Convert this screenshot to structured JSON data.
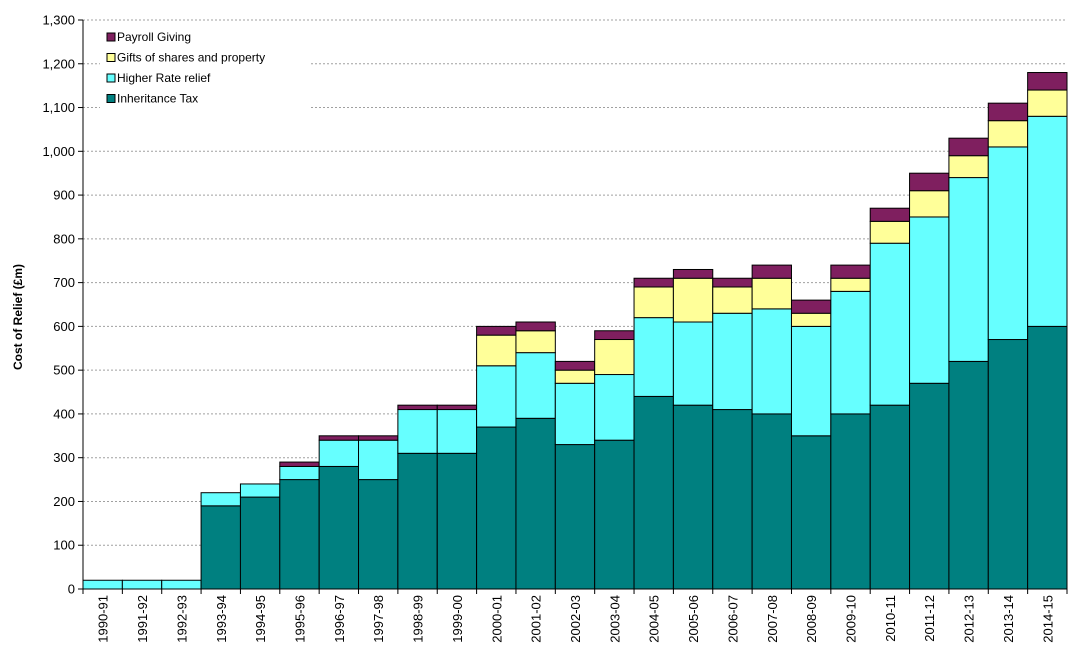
{
  "chart_data": {
    "type": "bar",
    "stacked": true,
    "title": "",
    "xlabel": "",
    "ylabel": "Cost of Relief (£m)",
    "ylim": [
      0,
      1300
    ],
    "ytick_step": 100,
    "grid": "horizontal dashed",
    "legend_placement": "top-left",
    "categories": [
      "1990-91",
      "1991-92",
      "1992-93",
      "1993-94",
      "1994-95",
      "1995-96",
      "1996-97",
      "1997-98",
      "1998-99",
      "1999-00",
      "2000-01",
      "2001-02",
      "2002-03",
      "2003-04",
      "2004-05",
      "2005-06",
      "2006-07",
      "2007-08",
      "2008-09",
      "2009-10",
      "2010-11",
      "2011-12",
      "2012-13",
      "2013-14",
      "2014-15"
    ],
    "series": [
      {
        "name": "Inheritance Tax",
        "color": "#008080",
        "values": [
          0,
          0,
          0,
          190,
          210,
          250,
          280,
          250,
          310,
          310,
          370,
          390,
          330,
          340,
          440,
          420,
          410,
          400,
          350,
          400,
          420,
          470,
          520,
          570,
          600
        ]
      },
      {
        "name": "Higher Rate relief",
        "color": "#66FFFF",
        "values": [
          20,
          20,
          20,
          30,
          30,
          30,
          60,
          90,
          100,
          100,
          140,
          150,
          140,
          150,
          180,
          190,
          220,
          240,
          250,
          280,
          370,
          380,
          420,
          440,
          480
        ]
      },
      {
        "name": "Gifts of shares and property",
        "color": "#FFFF99",
        "values": [
          0,
          0,
          0,
          0,
          0,
          0,
          0,
          0,
          0,
          0,
          70,
          50,
          30,
          80,
          70,
          100,
          60,
          70,
          30,
          30,
          50,
          60,
          50,
          60,
          60
        ]
      },
      {
        "name": "Payroll Giving",
        "color": "#7F1F5F",
        "values": [
          0,
          0,
          0,
          0,
          0,
          10,
          10,
          10,
          10,
          10,
          20,
          20,
          20,
          20,
          20,
          20,
          20,
          30,
          30,
          30,
          30,
          40,
          40,
          40,
          40
        ]
      }
    ],
    "legend_order": [
      "Payroll Giving",
      "Gifts of shares and property",
      "Higher Rate relief",
      "Inheritance Tax"
    ]
  }
}
